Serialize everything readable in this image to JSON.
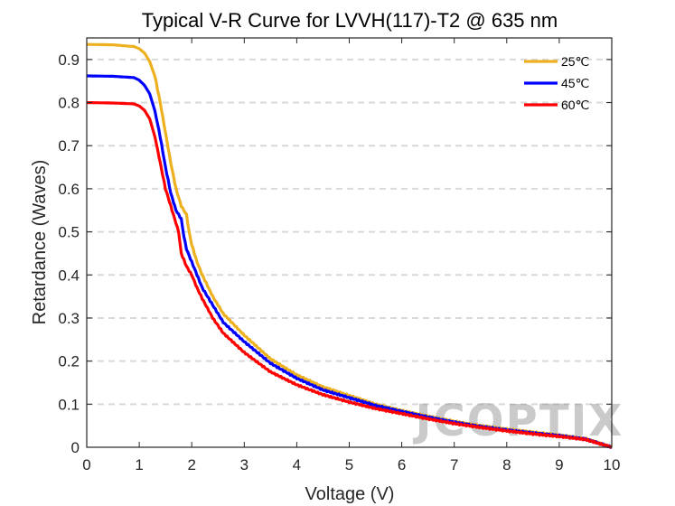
{
  "chart_data": {
    "type": "line",
    "title": "Typical V-R Curve for LVVH(117)-T2 @ 635 nm",
    "xlabel": "Voltage (V)",
    "ylabel": "Retardance (Waves)",
    "xlim": [
      0,
      10
    ],
    "ylim": [
      0,
      0.95
    ],
    "xticks": [
      0,
      1,
      2,
      3,
      4,
      5,
      6,
      7,
      8,
      9,
      10
    ],
    "yticks": [
      0,
      0.1,
      0.2,
      0.3,
      0.4,
      0.5,
      0.6,
      0.7,
      0.8,
      0.9
    ],
    "grid": "horizontal dashed",
    "legend_position": "top-right",
    "watermark": "JCOPTIX",
    "series": [
      {
        "name": "25℃",
        "color": "#EDB120",
        "x": [
          0,
          0.5,
          0.9,
          1.0,
          1.1,
          1.2,
          1.3,
          1.4,
          1.5,
          1.6,
          1.7,
          1.8,
          1.9,
          1.95,
          2.0,
          2.1,
          2.2,
          2.4,
          2.6,
          3.0,
          3.5,
          4.0,
          4.5,
          5.0,
          5.5,
          6.0,
          6.5,
          7.0,
          7.5,
          8.0,
          8.5,
          9.0,
          9.5,
          10.0
        ],
        "y": [
          0.935,
          0.934,
          0.93,
          0.925,
          0.915,
          0.895,
          0.86,
          0.8,
          0.73,
          0.66,
          0.6,
          0.56,
          0.54,
          0.5,
          0.47,
          0.43,
          0.4,
          0.35,
          0.31,
          0.26,
          0.205,
          0.168,
          0.14,
          0.12,
          0.1,
          0.085,
          0.072,
          0.06,
          0.05,
          0.042,
          0.035,
          0.028,
          0.02,
          0.0
        ]
      },
      {
        "name": "45℃",
        "color": "#0000FF",
        "x": [
          0,
          0.5,
          0.9,
          1.0,
          1.1,
          1.2,
          1.3,
          1.4,
          1.5,
          1.6,
          1.7,
          1.8,
          1.85,
          1.9,
          2.0,
          2.1,
          2.2,
          2.4,
          2.6,
          3.0,
          3.5,
          4.0,
          4.5,
          5.0,
          5.5,
          6.0,
          6.5,
          7.0,
          7.5,
          8.0,
          8.5,
          9.0,
          9.5,
          10.0
        ],
        "y": [
          0.862,
          0.861,
          0.858,
          0.852,
          0.84,
          0.82,
          0.78,
          0.72,
          0.65,
          0.59,
          0.55,
          0.53,
          0.49,
          0.46,
          0.43,
          0.4,
          0.37,
          0.33,
          0.29,
          0.245,
          0.195,
          0.16,
          0.133,
          0.115,
          0.097,
          0.083,
          0.07,
          0.058,
          0.048,
          0.04,
          0.033,
          0.027,
          0.019,
          0.0
        ]
      },
      {
        "name": "60℃",
        "color": "#FF0000",
        "x": [
          0,
          0.5,
          0.9,
          1.0,
          1.1,
          1.2,
          1.3,
          1.4,
          1.5,
          1.6,
          1.7,
          1.75,
          1.8,
          1.9,
          2.0,
          2.1,
          2.2,
          2.4,
          2.6,
          3.0,
          3.5,
          4.0,
          4.5,
          5.0,
          5.5,
          6.0,
          6.5,
          7.0,
          7.5,
          8.0,
          8.5,
          9.0,
          9.5,
          10.0
        ],
        "y": [
          0.8,
          0.799,
          0.797,
          0.792,
          0.782,
          0.762,
          0.72,
          0.66,
          0.6,
          0.56,
          0.52,
          0.5,
          0.45,
          0.42,
          0.4,
          0.37,
          0.345,
          0.3,
          0.265,
          0.22,
          0.175,
          0.145,
          0.122,
          0.105,
          0.09,
          0.078,
          0.066,
          0.055,
          0.046,
          0.038,
          0.031,
          0.025,
          0.018,
          0.0
        ]
      }
    ]
  }
}
